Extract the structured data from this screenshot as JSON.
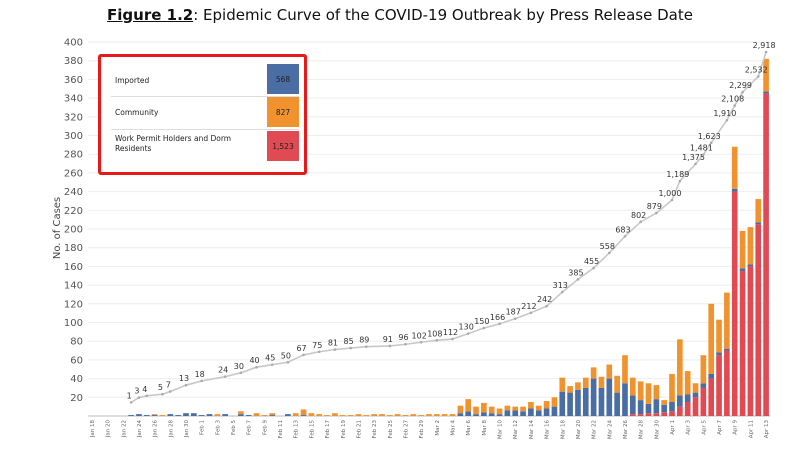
{
  "title": {
    "bold": "Figure 1.2",
    "rest": ": Epidemic Curve of the COVID-19 Outbreak by Press Release Date"
  },
  "legend": {
    "imported": {
      "label": "Imported",
      "total": "568",
      "color": "#4a6ea3"
    },
    "community": {
      "label": "Community",
      "total": "827",
      "color": "#f0922e"
    },
    "dorm": {
      "label": "Work Permit Holders and Dorm Residents",
      "total": "1,523",
      "color": "#e04a52"
    }
  },
  "chart_data": {
    "type": "bar",
    "title": "Epidemic Curve of the COVID-19 Outbreak by Press Release Date",
    "ylabel": "No. of Cases",
    "xlabel": "",
    "ylim": [
      0,
      400
    ],
    "yticks": [
      20,
      40,
      60,
      80,
      100,
      120,
      140,
      160,
      180,
      200,
      220,
      240,
      260,
      280,
      300,
      320,
      340,
      360,
      380,
      400
    ],
    "categories": [
      "Jan 18",
      "Jan 19",
      "Jan 20",
      "Jan 21",
      "Jan 22",
      "Jan 23",
      "Jan 24",
      "Jan 25",
      "Jan 26",
      "Jan 27",
      "Jan 28",
      "Jan 29",
      "Jan 30",
      "Jan 31",
      "Feb 1",
      "Feb 2",
      "Feb 3",
      "Feb 4",
      "Feb 5",
      "Feb 6",
      "Feb 7",
      "Feb 8",
      "Feb 9",
      "Feb 10",
      "Feb 11",
      "Feb 12",
      "Feb 13",
      "Feb 14",
      "Feb 15",
      "Feb 16",
      "Feb 17",
      "Feb 18",
      "Feb 19",
      "Feb 20",
      "Feb 21",
      "Feb 22",
      "Feb 23",
      "Feb 24",
      "Feb 25",
      "Feb 26",
      "Feb 27",
      "Feb 28",
      "Feb 29",
      "Mar 1",
      "Mar 2",
      "Mar 3",
      "Mar 4",
      "Mar 5",
      "Mar 6",
      "Mar 7",
      "Mar 8",
      "Mar 9",
      "Mar 10",
      "Mar 11",
      "Mar 12",
      "Mar 13",
      "Mar 14",
      "Mar 15",
      "Mar 16",
      "Mar 17",
      "Mar 18",
      "Mar 19",
      "Mar 20",
      "Mar 21",
      "Mar 22",
      "Mar 23",
      "Mar 24",
      "Mar 25",
      "Mar 26",
      "Mar 27",
      "Mar 28",
      "Mar 29",
      "Mar 30",
      "Mar 31",
      "Apr 1",
      "Apr 2",
      "Apr 3",
      "Apr 4",
      "Apr 5",
      "Apr 6",
      "Apr 7",
      "Apr 8",
      "Apr 9",
      "Apr 10",
      "Apr 11",
      "Apr 12",
      "Apr 13"
    ],
    "xtick_labels": [
      "Jan 18",
      "",
      "Jan 20",
      "",
      "Jan 22",
      "",
      "Jan 24",
      "",
      "Jan 26",
      "",
      "Jan 28",
      "",
      "Jan 30",
      "",
      "Feb 1",
      "",
      "Feb 3",
      "",
      "Feb 5",
      "",
      "Feb 7",
      "",
      "Feb 9",
      "",
      "Feb 11",
      "",
      "Feb 13",
      "",
      "Feb 15",
      "",
      "Feb 17",
      "",
      "Feb 19",
      "",
      "Feb 21",
      "",
      "Feb 23",
      "",
      "Feb 25",
      "",
      "Feb 27",
      "",
      "Feb 29",
      "",
      "Mar 2",
      "",
      "Mar 4",
      "",
      "Mar 6",
      "",
      "Mar 8",
      "",
      "Mar 10",
      "",
      "Mar 12",
      "",
      "Mar 14",
      "",
      "Mar 16",
      "",
      "Mar 18",
      "",
      "Mar 20",
      "",
      "Mar 22",
      "",
      "Mar 24",
      "",
      "Mar 26",
      "",
      "Mar 28",
      "",
      "Mar 30",
      "",
      "Apr 1",
      "",
      "Apr 3",
      "",
      "Apr 5",
      "",
      "Apr 7",
      "",
      "Apr 9",
      "",
      "Apr 11",
      "",
      "Apr 13"
    ],
    "series": [
      {
        "name": "Work Permit Holders and Dorm Residents",
        "color": "#e04a52",
        "values": [
          0,
          0,
          0,
          0,
          0,
          0,
          0,
          0,
          0,
          0,
          0,
          0,
          0,
          0,
          0,
          0,
          0,
          0,
          0,
          0,
          0,
          0,
          0,
          0,
          0,
          0,
          0,
          0,
          0,
          0,
          0,
          0,
          0,
          0,
          0,
          0,
          0,
          0,
          0,
          0,
          0,
          0,
          0,
          0,
          0,
          0,
          0,
          0,
          0,
          0,
          0,
          0,
          0,
          0,
          0,
          0,
          0,
          0,
          0,
          0,
          0,
          0,
          0,
          0,
          0,
          0,
          0,
          0,
          0,
          2,
          2,
          3,
          3,
          4,
          5,
          10,
          15,
          20,
          30,
          40,
          65,
          70,
          240,
          155,
          160,
          205,
          345
        ]
      },
      {
        "name": "Imported",
        "color": "#4a6ea3",
        "values": [
          0,
          0,
          0,
          0,
          0,
          1,
          2,
          1,
          1,
          0,
          2,
          1,
          3,
          3,
          1,
          2,
          0,
          2,
          0,
          2,
          1,
          0,
          0,
          1,
          0,
          2,
          0,
          1,
          0,
          0,
          0,
          0,
          0,
          0,
          0,
          0,
          0,
          0,
          0,
          0,
          0,
          0,
          0,
          0,
          0,
          0,
          0,
          3,
          5,
          2,
          4,
          3,
          2,
          6,
          6,
          5,
          8,
          6,
          8,
          10,
          26,
          25,
          28,
          30,
          40,
          30,
          40,
          25,
          35,
          20,
          15,
          10,
          15,
          8,
          10,
          12,
          8,
          5,
          5,
          5,
          3,
          2,
          3,
          3,
          2,
          2,
          2
        ]
      },
      {
        "name": "Community",
        "color": "#f0922e",
        "values": [
          0,
          0,
          0,
          0,
          0,
          0,
          0,
          0,
          1,
          1,
          0,
          0,
          0,
          0,
          0,
          0,
          2,
          0,
          0,
          3,
          0,
          3,
          1,
          2,
          0,
          0,
          3,
          6,
          3,
          2,
          1,
          3,
          1,
          1,
          2,
          1,
          2,
          2,
          1,
          2,
          1,
          2,
          1,
          2,
          2,
          2,
          2,
          8,
          13,
          8,
          10,
          7,
          6,
          5,
          4,
          5,
          7,
          5,
          8,
          10,
          15,
          7,
          8,
          11,
          12,
          12,
          15,
          18,
          30,
          19,
          20,
          22,
          15,
          5,
          30,
          60,
          25,
          10,
          30,
          75,
          35,
          60,
          45,
          40,
          40,
          25,
          35
        ]
      }
    ],
    "cumulative_labels": [
      {
        "date": "Jan 23",
        "value": "1"
      },
      {
        "date": "Jan 24",
        "value": "3"
      },
      {
        "date": "Jan 25",
        "value": "4"
      },
      {
        "date": "Jan 27",
        "value": "5"
      },
      {
        "date": "Jan 28",
        "value": "7"
      },
      {
        "date": "Jan 30",
        "value": "13"
      },
      {
        "date": "Feb 1",
        "value": "18"
      },
      {
        "date": "Feb 4",
        "value": "24"
      },
      {
        "date": "Feb 6",
        "value": "30"
      },
      {
        "date": "Feb 8",
        "value": "40"
      },
      {
        "date": "Feb 10",
        "value": "45"
      },
      {
        "date": "Feb 12",
        "value": "50"
      },
      {
        "date": "Feb 14",
        "value": "67"
      },
      {
        "date": "Feb 16",
        "value": "75"
      },
      {
        "date": "Feb 18",
        "value": "81"
      },
      {
        "date": "Feb 20",
        "value": "85"
      },
      {
        "date": "Feb 22",
        "value": "89"
      },
      {
        "date": "Feb 25",
        "value": "91"
      },
      {
        "date": "Feb 27",
        "value": "96"
      },
      {
        "date": "Feb 29",
        "value": "102"
      },
      {
        "date": "Mar 2",
        "value": "108"
      },
      {
        "date": "Mar 4",
        "value": "112"
      },
      {
        "date": "Mar 6",
        "value": "130"
      },
      {
        "date": "Mar 8",
        "value": "150"
      },
      {
        "date": "Mar 10",
        "value": "166"
      },
      {
        "date": "Mar 12",
        "value": "187"
      },
      {
        "date": "Mar 14",
        "value": "212"
      },
      {
        "date": "Mar 16",
        "value": "242"
      },
      {
        "date": "Mar 18",
        "value": "313"
      },
      {
        "date": "Mar 20",
        "value": "385"
      },
      {
        "date": "Mar 22",
        "value": "455"
      },
      {
        "date": "Mar 24",
        "value": "558"
      },
      {
        "date": "Mar 26",
        "value": "683"
      },
      {
        "date": "Mar 28",
        "value": "802"
      },
      {
        "date": "Mar 30",
        "value": "879"
      },
      {
        "date": "Apr 1",
        "value": "1,000"
      },
      {
        "date": "Apr 2",
        "value": "1,189"
      },
      {
        "date": "Apr 4",
        "value": "1,375"
      },
      {
        "date": "Apr 5",
        "value": "1,481"
      },
      {
        "date": "Apr 6",
        "value": "1,623"
      },
      {
        "date": "Apr 8",
        "value": "1,910"
      },
      {
        "date": "Apr 9",
        "value": "2,108"
      },
      {
        "date": "Apr 10",
        "value": "2,299"
      },
      {
        "date": "Apr 12",
        "value": "2,532"
      },
      {
        "date": "Apr 13",
        "value": "2,918"
      }
    ]
  }
}
